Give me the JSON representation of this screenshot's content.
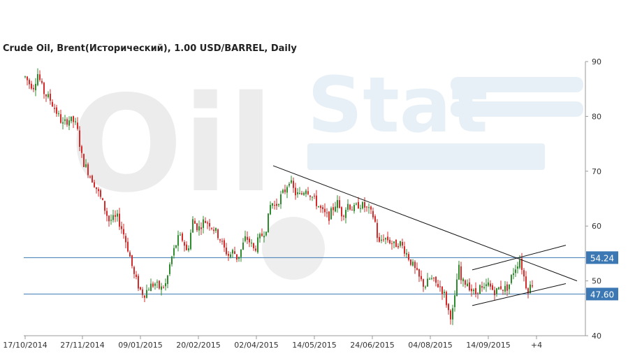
{
  "chart_data": {
    "type": "candlestick",
    "title": "Crude Oil, Brent(Исторический), 1.00 USD/BARREL, Daily",
    "ylim": [
      40,
      90
    ],
    "yticks": [
      40,
      50,
      60,
      70,
      80,
      90
    ],
    "xticks": [
      "17/10/2014",
      "27/11/2014",
      "09/01/2015",
      "20/02/2015",
      "02/04/2015",
      "14/05/2015",
      "24/06/2015",
      "04/08/2015",
      "14/09/2015",
      "+4"
    ],
    "grid": false,
    "colors": {
      "up": "#2e8b2e",
      "down": "#d42a2a",
      "level": "#3c78b4",
      "trend": "#111111",
      "label_bg": "#3c78b4"
    },
    "price_path": [
      [
        0,
        87.2
      ],
      [
        6,
        86.0
      ],
      [
        12,
        85.5
      ],
      [
        18,
        87.8
      ],
      [
        26,
        84.5
      ],
      [
        36,
        83.0
      ],
      [
        46,
        80.5
      ],
      [
        54,
        78.5
      ],
      [
        62,
        79.5
      ],
      [
        70,
        79.0
      ],
      [
        74,
        78.0
      ],
      [
        82,
        72.0
      ],
      [
        90,
        70.0
      ],
      [
        100,
        67.5
      ],
      [
        110,
        64.5
      ],
      [
        120,
        61.0
      ],
      [
        132,
        61.5
      ],
      [
        140,
        59.0
      ],
      [
        148,
        55.5
      ],
      [
        156,
        51.0
      ],
      [
        164,
        48.5
      ],
      [
        170,
        47.5
      ],
      [
        178,
        49.0
      ],
      [
        186,
        49.5
      ],
      [
        194,
        48.5
      ],
      [
        202,
        49.5
      ],
      [
        208,
        53.5
      ],
      [
        214,
        56.0
      ],
      [
        220,
        58.0
      ],
      [
        226,
        57.5
      ],
      [
        232,
        55.0
      ],
      [
        240,
        61.0
      ],
      [
        248,
        59.5
      ],
      [
        256,
        61.0
      ],
      [
        264,
        60.5
      ],
      [
        270,
        59.5
      ],
      [
        278,
        58.0
      ],
      [
        284,
        56.0
      ],
      [
        292,
        54.5
      ],
      [
        298,
        55.5
      ],
      [
        304,
        54.0
      ],
      [
        310,
        56.0
      ],
      [
        316,
        58.0
      ],
      [
        322,
        57.0
      ],
      [
        328,
        55.5
      ],
      [
        334,
        57.5
      ],
      [
        340,
        58.5
      ],
      [
        346,
        60.0
      ],
      [
        352,
        64.5
      ],
      [
        358,
        63.5
      ],
      [
        364,
        65.0
      ],
      [
        372,
        66.5
      ],
      [
        378,
        68.5
      ],
      [
        386,
        66.0
      ],
      [
        394,
        65.5
      ],
      [
        402,
        67.0
      ],
      [
        410,
        65.5
      ],
      [
        418,
        64.0
      ],
      [
        426,
        62.5
      ],
      [
        434,
        61.5
      ],
      [
        440,
        63.0
      ],
      [
        446,
        64.5
      ],
      [
        454,
        62.0
      ],
      [
        462,
        64.0
      ],
      [
        470,
        63.0
      ],
      [
        478,
        64.0
      ],
      [
        486,
        63.5
      ],
      [
        494,
        62.5
      ],
      [
        500,
        61.5
      ],
      [
        506,
        56.5
      ],
      [
        512,
        58.0
      ],
      [
        520,
        57.5
      ],
      [
        528,
        56.5
      ],
      [
        536,
        57.0
      ],
      [
        544,
        55.5
      ],
      [
        550,
        54.0
      ],
      [
        556,
        52.5
      ],
      [
        564,
        50.5
      ],
      [
        572,
        49.0
      ],
      [
        580,
        50.5
      ],
      [
        588,
        49.5
      ],
      [
        594,
        49.0
      ],
      [
        600,
        47.5
      ],
      [
        604,
        45.5
      ],
      [
        608,
        43.5
      ],
      [
        612,
        44.5
      ],
      [
        616,
        47.5
      ],
      [
        620,
        53.0
      ],
      [
        624,
        50.0
      ],
      [
        628,
        49.5
      ],
      [
        632,
        50.0
      ],
      [
        638,
        48.5
      ],
      [
        644,
        47.5
      ],
      [
        650,
        49.0
      ],
      [
        656,
        48.0
      ],
      [
        662,
        49.5
      ],
      [
        668,
        48.5
      ],
      [
        674,
        48.0
      ],
      [
        680,
        49.0
      ],
      [
        686,
        48.5
      ],
      [
        692,
        49.0
      ],
      [
        698,
        51.5
      ],
      [
        704,
        53.0
      ],
      [
        708,
        54.0
      ],
      [
        712,
        52.0
      ],
      [
        716,
        49.5
      ],
      [
        720,
        48.5
      ],
      [
        726,
        49.5
      ]
    ],
    "horizontal_levels": [
      {
        "value": 54.24,
        "label": "54.24"
      },
      {
        "value": 47.6,
        "label": "47.60"
      }
    ],
    "trend_lines": [
      {
        "start": [
          "29/04/2015",
          71.0
        ],
        "end": [
          "+4",
          50.0
        ]
      },
      {
        "start": [
          "26/08/2015",
          52.0
        ],
        "end": [
          "+4",
          56.5
        ]
      },
      {
        "start": [
          "26/08/2015",
          45.5
        ],
        "end": [
          "+4",
          49.5
        ]
      }
    ],
    "watermark": {
      "left_text": "Oil",
      "right_text": "Stat",
      "left_color": "#ececec",
      "right_color": "#e8f0f7"
    }
  }
}
